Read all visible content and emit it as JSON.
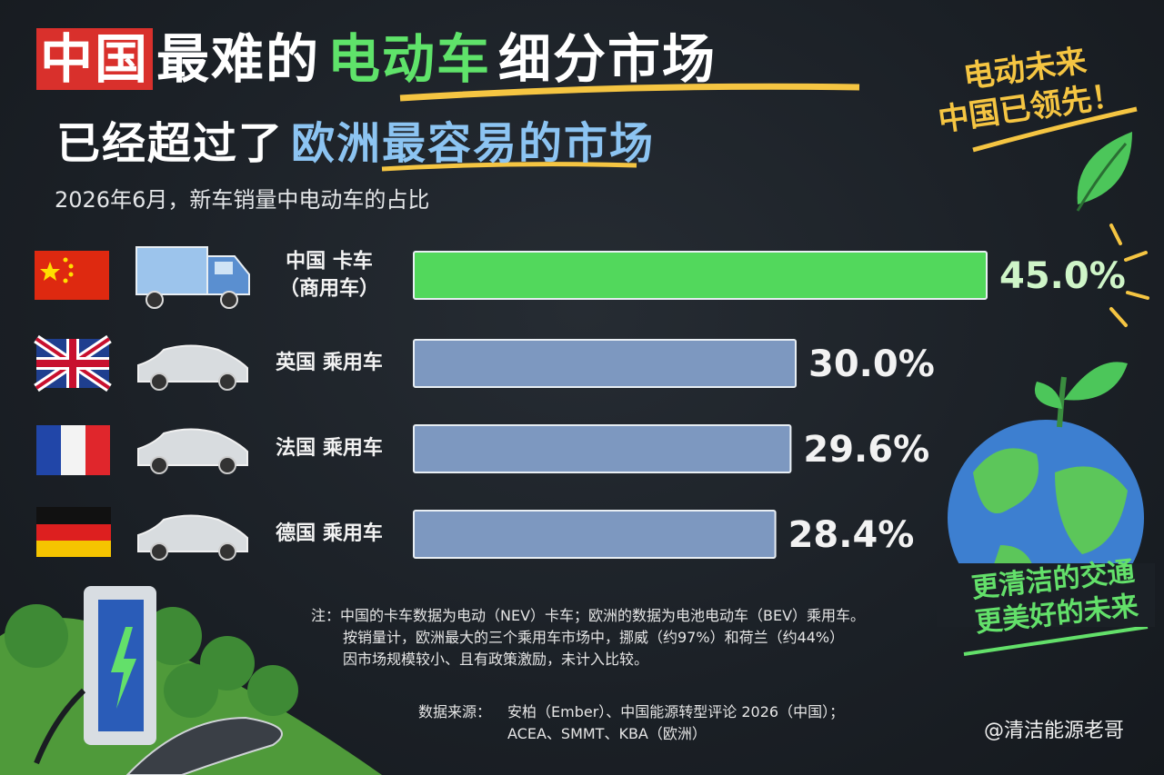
{
  "header": {
    "title_line1": [
      {
        "text": "中国",
        "color": "#ffffff",
        "highlight": "#d9302c"
      },
      {
        "text": "最难的",
        "color": "#ffffff"
      },
      {
        "text": "电动车",
        "color": "#5fe36a"
      },
      {
        "text": "细分市场",
        "color": "#ffffff"
      }
    ],
    "title_line2": [
      {
        "text": "已经超过了",
        "color": "#ffffff"
      },
      {
        "text": "欧洲最容易的市场",
        "color": "#8cc4f2"
      }
    ],
    "subtitle": "2026年6月，新车销量中电动车的占比"
  },
  "chart_data": {
    "type": "hbar",
    "categories": [
      "中国 卡车\n（商用车）",
      "英国 乘用车",
      "法国 乘用车",
      "德国 乘用车"
    ],
    "values": [
      45.0,
      30.0,
      29.6,
      28.4
    ],
    "value_labels": [
      "45.0%",
      "30.0%",
      "29.6%",
      "28.4%"
    ],
    "colors": [
      "#52d85c",
      "#7d98c0",
      "#7d98c0",
      "#7d98c0"
    ]
  },
  "side_notes": [
    "电动未来\n中国已领先！",
    "更清洁的交通\n更美好的未来"
  ],
  "notes": [
    "注：中国的卡车数据为电动（NEV）卡车；欧洲的数据为电池电动车（BEV）乘用车。",
    "按销量计，欧洲最大的三个乘用车市场中，挪威（约97%）和荷兰（约44%）",
    "因市场规模较小、且有政策激励，未计入比较。"
  ],
  "source": {
    "label": "数据来源：",
    "lines": [
      "安柏（Ember）、中国能源转型评论 2026（中国）；",
      "ACEA、SMMT、KBA（欧洲）"
    ]
  },
  "handle": "@清洁能源老哥"
}
